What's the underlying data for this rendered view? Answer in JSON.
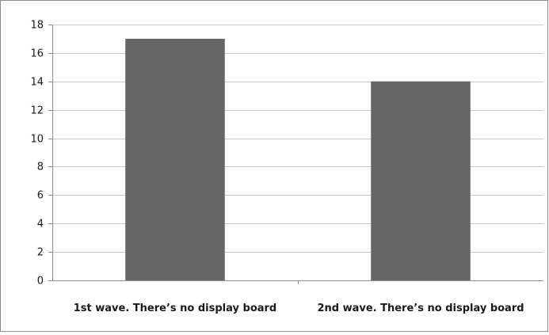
{
  "chart_data": {
    "type": "bar",
    "title": "",
    "xlabel": "",
    "ylabel": "",
    "categories": [
      "1st wave. There’s no display board",
      "2nd wave. There’s no display board"
    ],
    "values": [
      17,
      14
    ],
    "ylim": [
      0,
      18
    ],
    "yticks": [
      0,
      2,
      4,
      6,
      8,
      10,
      12,
      14,
      16,
      18
    ],
    "grid": true,
    "legend": "none",
    "colors": {
      "bar": "#666666",
      "grid": "#c8c8c8",
      "axis": "#8c8c8c",
      "border": "#8c8c8c"
    }
  }
}
